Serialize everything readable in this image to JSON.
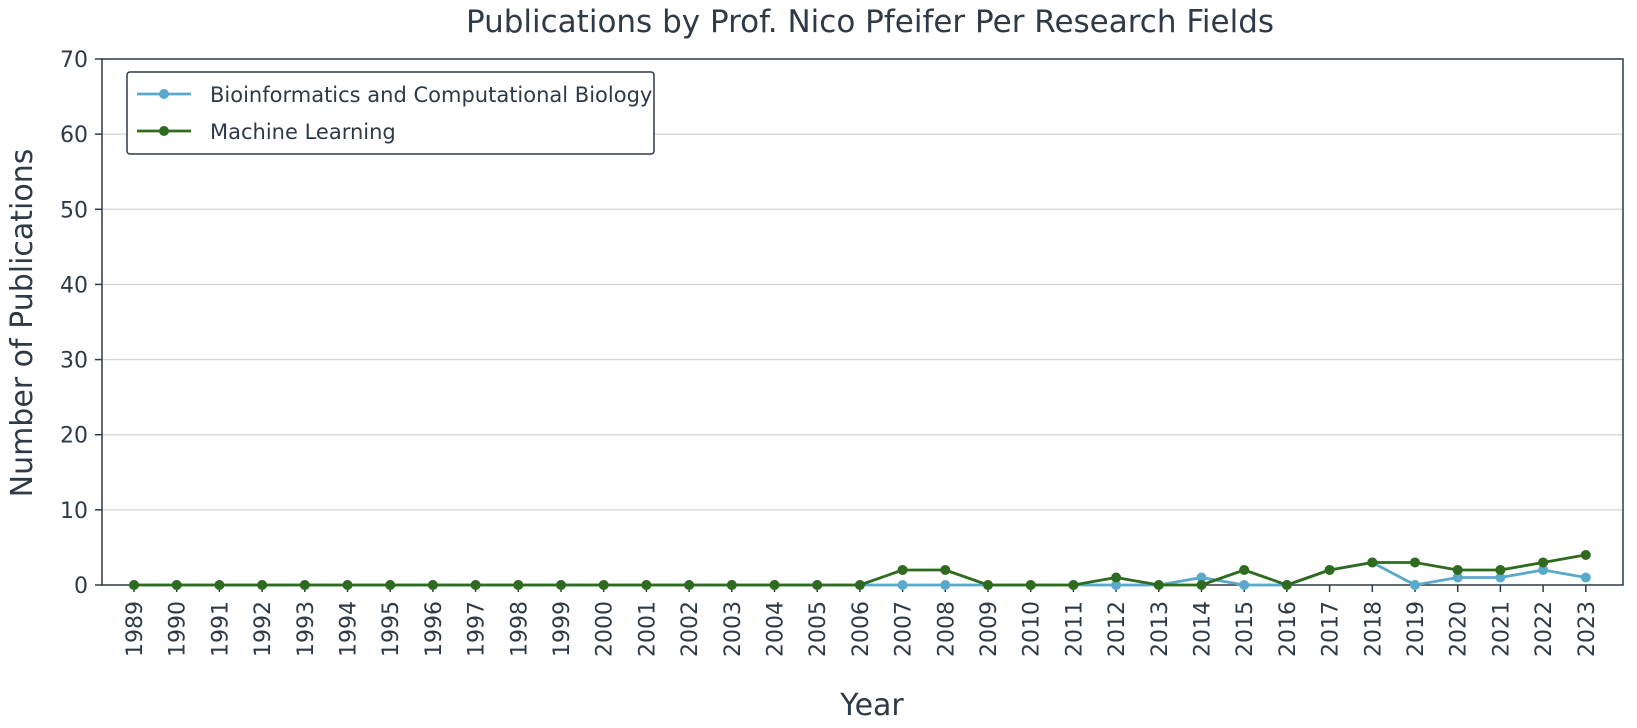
{
  "chart_data": {
    "type": "line",
    "title": "Publications by Prof. Nico Pfeifer Per Research Fields",
    "xlabel": "Year",
    "ylabel": "Number of Publications",
    "ylim": [
      0,
      70
    ],
    "yticks": [
      0,
      10,
      20,
      30,
      40,
      50,
      60,
      70
    ],
    "grid": "horizontal",
    "legend_position": "top-left",
    "x": [
      "1989",
      "1990",
      "1991",
      "1992",
      "1993",
      "1994",
      "1995",
      "1996",
      "1997",
      "1998",
      "1999",
      "2000",
      "2001",
      "2002",
      "2003",
      "2004",
      "2005",
      "2006",
      "2007",
      "2008",
      "2009",
      "2010",
      "2011",
      "2012",
      "2013",
      "2014",
      "2015",
      "2016",
      "2017",
      "2018",
      "2019",
      "2020",
      "2021",
      "2022",
      "2023"
    ],
    "series": [
      {
        "name": "Bioinformatics and Computational Biology",
        "color": "#5aa9cc",
        "values": [
          0,
          0,
          0,
          0,
          0,
          0,
          0,
          0,
          0,
          0,
          0,
          0,
          0,
          0,
          0,
          0,
          0,
          0,
          0,
          0,
          0,
          0,
          0,
          0,
          0,
          1,
          0,
          0,
          2,
          3,
          0,
          1,
          1,
          2,
          1
        ]
      },
      {
        "name": "Machine Learning",
        "color": "#2f6b1f",
        "values": [
          0,
          0,
          0,
          0,
          0,
          0,
          0,
          0,
          0,
          0,
          0,
          0,
          0,
          0,
          0,
          0,
          0,
          0,
          2,
          2,
          0,
          0,
          0,
          1,
          0,
          0,
          2,
          0,
          2,
          3,
          3,
          2,
          2,
          3,
          4
        ]
      }
    ]
  }
}
